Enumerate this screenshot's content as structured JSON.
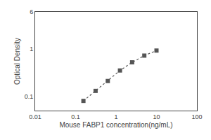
{
  "chart_data": {
    "type": "line",
    "x": [
      0.156,
      0.312,
      0.625,
      1.25,
      2.5,
      5.0,
      10.0
    ],
    "values": [
      0.08,
      0.13,
      0.21,
      0.35,
      0.52,
      0.72,
      0.92
    ],
    "x_label": "Mouse FABP1 concentration(ng/mL)",
    "y_label": "Optical Density",
    "log": true,
    "xlim": [
      0.01,
      100
    ],
    "xticks": [
      0.01,
      0.1,
      1,
      10,
      100
    ],
    "ylim": [
      0.05,
      6.0
    ],
    "yticks": [
      0.1,
      1,
      6
    ],
    "color": "#555555",
    "marker": "square",
    "line_style": "dotted",
    "grid": false
  }
}
